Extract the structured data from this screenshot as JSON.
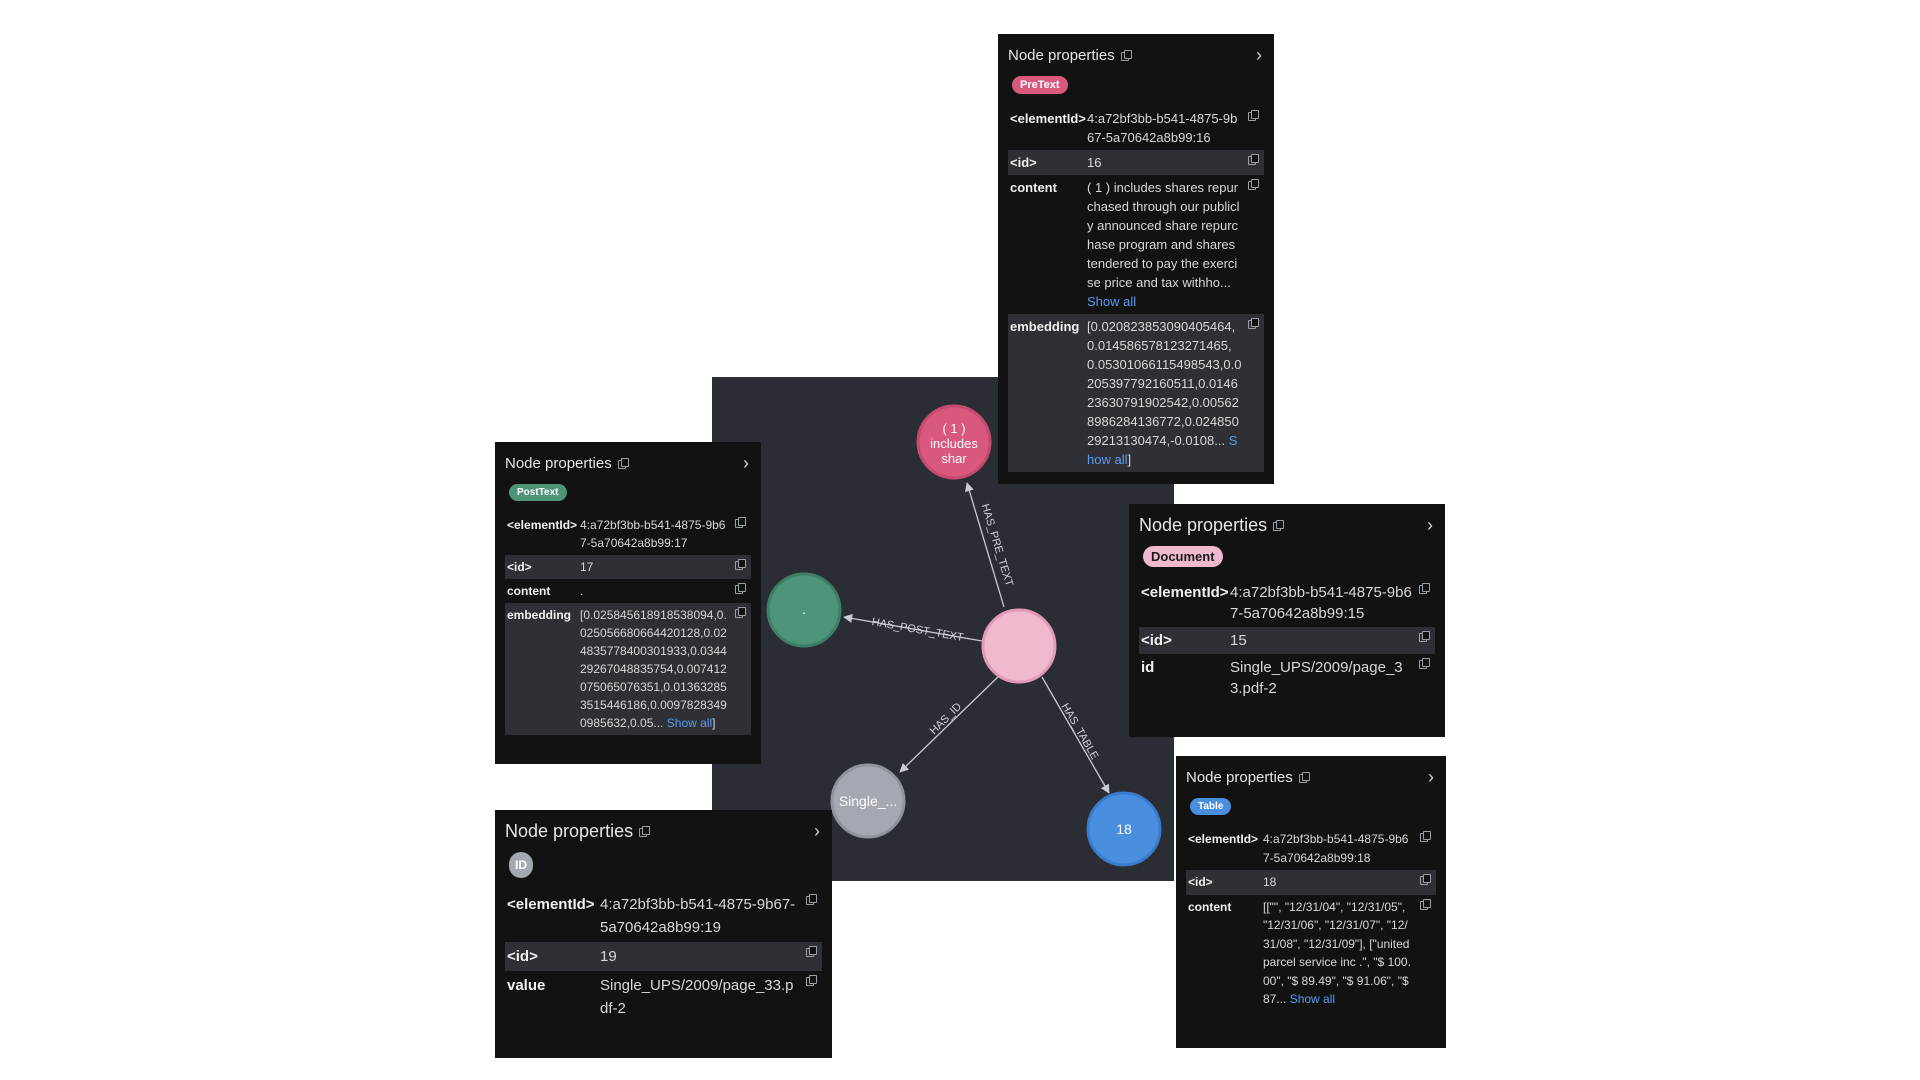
{
  "colors": {
    "canvas": "#2a2d33",
    "panel": "#121212",
    "pretext": "#d8587e",
    "posttext": "#4e9478",
    "document": "#f0b9cf",
    "table": "#4a8ee0",
    "id_node": "#a4a9b1",
    "link": "#5a9bf0"
  },
  "graph": {
    "nodes": {
      "document": {
        "label": ""
      },
      "pretext": {
        "label_lines": [
          "( 1 )",
          "includes",
          "shar"
        ]
      },
      "posttext": {
        "label": "."
      },
      "id": {
        "label": "Single_..."
      },
      "table": {
        "label": "18"
      }
    },
    "edges": {
      "has_pre_text": "HAS_PRE_TEXT",
      "has_post_text": "HAS_POST_TEXT",
      "has_id": "HAS_ID",
      "has_table": "HAS_TABLE"
    }
  },
  "panels": {
    "pretext": {
      "title": "Node properties",
      "badge": "PreText",
      "rows": [
        {
          "key": "<elementId>",
          "value": "4:a72bf3bb-b541-4875-9b67-5a70642a8b99:16"
        },
        {
          "key": "<id>",
          "value": "16"
        },
        {
          "key": "content",
          "value": "( 1 ) includes shares repurchased through our publicly announced share repurchase program and shares tendered to pay the exercise price and tax withho...",
          "link": "Show all"
        },
        {
          "key": "embedding",
          "value": "[0.020823853090405464,0.014586578123271465,0.05301066115498543,0.0205397792160511,0.014623630791902542,0.005628986284136772,0.02485029213130474,-0.0108...",
          "link": "Show all",
          "suffix": "]"
        }
      ]
    },
    "posttext": {
      "title": "Node properties",
      "badge": "PostText",
      "rows": [
        {
          "key": "<elementId>",
          "value": "4:a72bf3bb-b541-4875-9b67-5a70642a8b99:17"
        },
        {
          "key": "<id>",
          "value": "17"
        },
        {
          "key": "content",
          "value": "."
        },
        {
          "key": "embedding",
          "value": "[0.025845618918538094,0.025056680664420128,0.024835778400301933,0.034429267048835754,0.007412075065076351,0.013632853515446186,0.00978283490985632,0.05...",
          "link": "Show all",
          "suffix": "]"
        }
      ]
    },
    "document": {
      "title": "Node properties",
      "badge": "Document",
      "rows": [
        {
          "key": "<elementId>",
          "value": "4:a72bf3bb-b541-4875-9b67-5a70642a8b99:15"
        },
        {
          "key": "<id>",
          "value": "15"
        },
        {
          "key": "id",
          "value": "Single_UPS/2009/page_33.pdf-2"
        }
      ]
    },
    "table": {
      "title": "Node properties",
      "badge": "Table",
      "rows": [
        {
          "key": "<elementId>",
          "value": "4:a72bf3bb-b541-4875-9b67-5a70642a8b99:18"
        },
        {
          "key": "<id>",
          "value": "18"
        },
        {
          "key": "content",
          "value": "[[\"\", \"12/31/04\", \"12/31/05\", \"12/31/06\", \"12/31/07\", \"12/31/08\", \"12/31/09\"], [\"united parcel service inc .\", \"$ 100.00\", \"$ 89.49\", \"$ 91.06\", \"$ 87...",
          "link": "Show all"
        }
      ]
    },
    "id": {
      "title": "Node properties",
      "badge": "ID",
      "rows": [
        {
          "key": "<elementId>",
          "value": "4:a72bf3bb-b541-4875-9b67-5a70642a8b99:19"
        },
        {
          "key": "<id>",
          "value": "19"
        },
        {
          "key": "value",
          "value": "Single_UPS/2009/page_33.pdf-2"
        }
      ]
    }
  }
}
